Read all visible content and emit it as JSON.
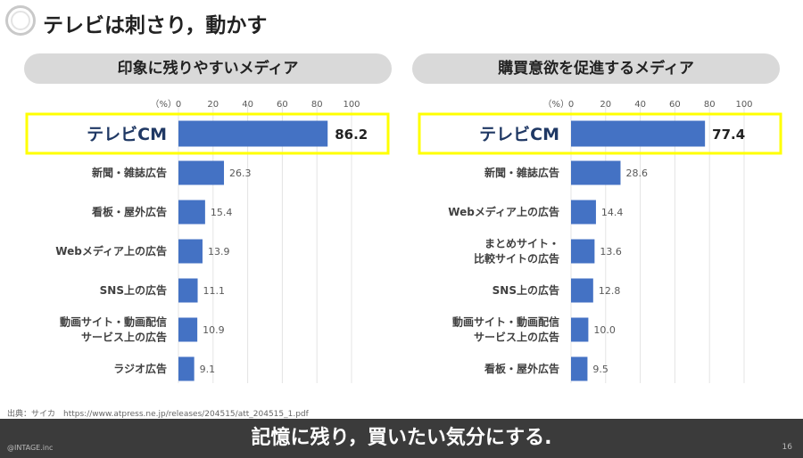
{
  "slide": {
    "title": "テレビは刺さり，動かす",
    "source": "出典：サイカ　https://www.atpress.ne.jp/releases/204515/att_204515_1.pdf",
    "footer_message": "記憶に残り，買いたい気分にする.",
    "copyright": "@INTAGE.inc",
    "page_number": "16"
  },
  "colors": {
    "bar": "#4472c4",
    "highlight_border": "#ffff00",
    "highlight_text": "#1f3864",
    "footer_bg": "#3b3b3b"
  },
  "chart_data": [
    {
      "type": "bar",
      "orientation": "horizontal",
      "title": "印象に残りやすいメディア",
      "unit_label": "（%）",
      "xlim": [
        0,
        100
      ],
      "ticks": [
        "0",
        "20",
        "40",
        "60",
        "80",
        "100"
      ],
      "grid": true,
      "categories": [
        "テレビCM",
        "新聞・雑誌広告",
        "看板・屋外広告",
        "Webメディア上の広告",
        "SNS上の広告",
        "動画サイト・動画配信\nサービス上の広告",
        "ラジオ広告"
      ],
      "values": [
        86.2,
        26.3,
        15.4,
        13.9,
        11.1,
        10.9,
        9.1
      ],
      "value_labels": [
        "86.2",
        "26.3",
        "15.4",
        "13.9",
        "11.1",
        "10.9",
        "9.1"
      ],
      "highlight_index": 0
    },
    {
      "type": "bar",
      "orientation": "horizontal",
      "title": "購買意欲を促進するメディア",
      "unit_label": "（%）",
      "xlim": [
        0,
        100
      ],
      "ticks": [
        "0",
        "20",
        "40",
        "60",
        "80",
        "100"
      ],
      "grid": true,
      "categories": [
        "テレビCM",
        "新聞・雑誌広告",
        "Webメディア上の広告",
        "まとめサイト・\n比較サイトの広告",
        "SNS上の広告",
        "動画サイト・動画配信\nサービス上の広告",
        "看板・屋外広告"
      ],
      "values": [
        77.4,
        28.6,
        14.4,
        13.6,
        12.8,
        10.0,
        9.5
      ],
      "value_labels": [
        "77.4",
        "28.6",
        "14.4",
        "13.6",
        "12.8",
        "10.0",
        "9.5"
      ],
      "highlight_index": 0
    }
  ]
}
